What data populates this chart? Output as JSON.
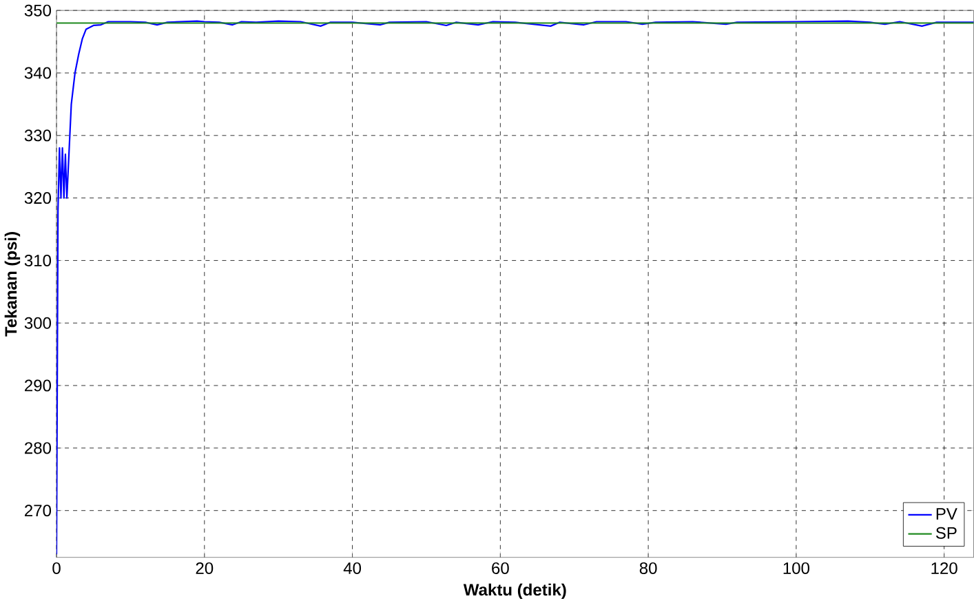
{
  "chart_data": {
    "type": "line",
    "xlabel": "Waktu (detik)",
    "ylabel": "Tekanan (psi)",
    "xlim": [
      0,
      124
    ],
    "ylim": [
      262.5,
      350
    ],
    "xticks": [
      0,
      20,
      40,
      60,
      80,
      100,
      120
    ],
    "yticks": [
      270,
      280,
      290,
      300,
      310,
      320,
      330,
      340,
      350
    ],
    "grid": true,
    "legend": "bottom right",
    "marker": "none",
    "line_style": "solid",
    "series": [
      {
        "name": "PV",
        "color": "#0000ff",
        "x": [
          0,
          0.2,
          0.4,
          0.6,
          0.8,
          1.0,
          1.2,
          1.4,
          1.6,
          2.0,
          2.5,
          3.0,
          3.5,
          4.0,
          5.0,
          6.0,
          7.0,
          10,
          12,
          13.6,
          15,
          19,
          20,
          22,
          23.8,
          25,
          27,
          30,
          33,
          35.7,
          37,
          40,
          43.8,
          45,
          50,
          52.7,
          54,
          57,
          59,
          62,
          66.8,
          68,
          71.3,
          73,
          77,
          79.2,
          81,
          86,
          90.5,
          92,
          100,
          107,
          110,
          112,
          114,
          117,
          119,
          124
        ],
        "values": [
          263,
          318,
          328,
          320,
          328,
          320,
          327,
          320,
          325,
          335,
          340,
          343,
          345.5,
          347,
          347.6,
          347.7,
          348.2,
          348.2,
          348.1,
          347.7,
          348.1,
          348.3,
          348.2,
          348.1,
          347.7,
          348.2,
          348.1,
          348.3,
          348.2,
          347.5,
          348.1,
          348.1,
          347.7,
          348.1,
          348.2,
          347.6,
          348.1,
          347.7,
          348.2,
          348.1,
          347.5,
          348.1,
          347.7,
          348.2,
          348.2,
          347.8,
          348.1,
          348.2,
          347.8,
          348.1,
          348.2,
          348.3,
          348.1,
          347.8,
          348.2,
          347.5,
          348.1,
          348.1
        ]
      },
      {
        "name": "SP",
        "color": "#228b22",
        "x": [
          0,
          124
        ],
        "values": [
          348,
          348
        ]
      }
    ]
  }
}
